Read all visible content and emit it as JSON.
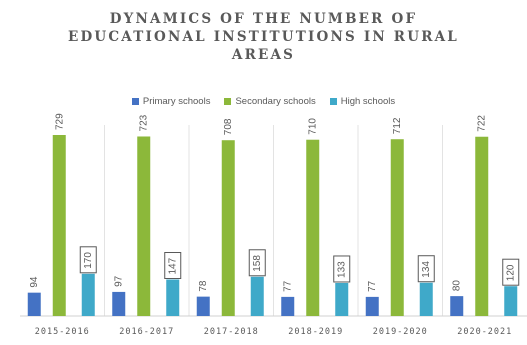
{
  "chart_data": {
    "type": "bar",
    "title_lines": [
      "DYNAMICS OF THE NUMBER OF",
      "EDUCATIONAL INSTITUTIONS IN RURAL",
      "AREAS"
    ],
    "categories": [
      "2015-2016",
      "2016-2017",
      "2017-2018",
      "2018-2019",
      "2019-2020",
      "2020-2021"
    ],
    "series": [
      {
        "name": "Primary schools",
        "color": "#4472c4",
        "values": [
          94,
          97,
          78,
          77,
          77,
          80
        ]
      },
      {
        "name": "Secondary schools",
        "color": "#8cb83a",
        "values": [
          729,
          723,
          708,
          710,
          712,
          722
        ]
      },
      {
        "name": "High schools",
        "color": "#3fa9c9",
        "values": [
          170,
          147,
          158,
          133,
          134,
          120
        ],
        "boxed_labels": true
      }
    ],
    "legend_position": "top",
    "gridlines": "vertical-separators",
    "ylim": [
      0,
      750
    ]
  }
}
